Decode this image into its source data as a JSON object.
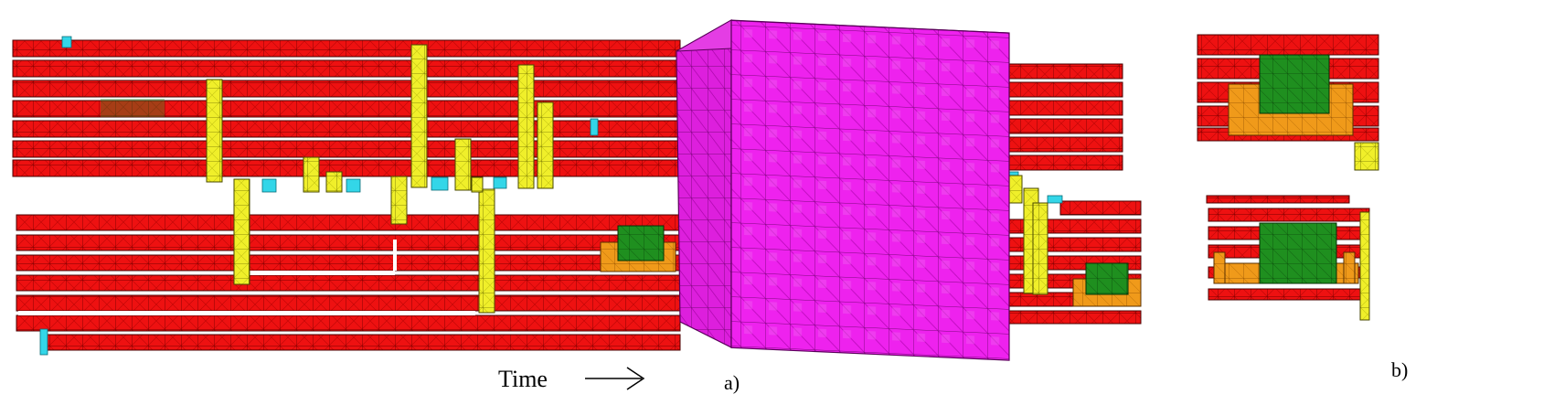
{
  "captions": {
    "time_axis": "Time",
    "panel_a": "a)",
    "panel_b": "b)"
  },
  "colors": {
    "wire": "#ee1111",
    "wire_edge": "#7a0000",
    "vertical": "#f0ef2a",
    "vertical_edge": "#6b6a00",
    "block": "#ee22ee",
    "block_edge": "#7a087a",
    "green": "#1f8f1f",
    "orange": "#f09a1a",
    "cyan": "#33d6e8"
  },
  "legend": {
    "wires": "red-wire-icon",
    "connectors": "yellow-connector-icon",
    "cube": "magenta-block-icon",
    "box_top": "green-box-icon",
    "box_base": "orange-base-icon",
    "marker": "cyan-marker-icon"
  }
}
